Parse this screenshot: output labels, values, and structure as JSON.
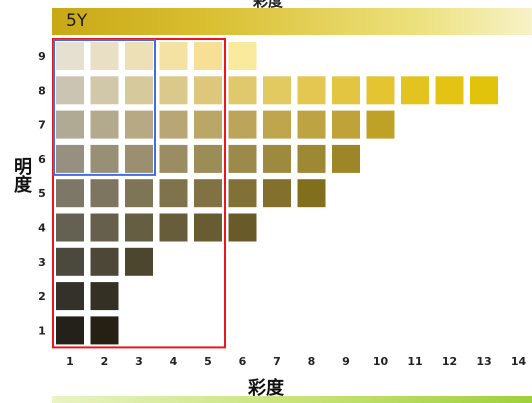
{
  "top_title": "彩度",
  "header": {
    "hue": "5Y"
  },
  "colors": {
    "highlight_red": "#e8161f",
    "highlight_blue": "#3f6fe0",
    "header_band_from": "#c9a816",
    "header_band_to": "#f7f2c8"
  },
  "chart_data": {
    "type": "heatmap",
    "title": "5Y",
    "xlabel": "彩度",
    "ylabel": "明度",
    "x_ticks": [
      "1",
      "2",
      "3",
      "4",
      "5",
      "6",
      "7",
      "8",
      "9",
      "10",
      "11",
      "12",
      "13",
      "14"
    ],
    "y_ticks": [
      "9",
      "8",
      "7",
      "6",
      "5",
      "4",
      "3",
      "2",
      "1"
    ],
    "rows": [
      {
        "value": 9,
        "colors": [
          "#e6e0d1",
          "#e8dfc4",
          "#eee0b6",
          "#f4e1a4",
          "#f7e096",
          "#faea9e"
        ]
      },
      {
        "value": 8,
        "colors": [
          "#ccc4b2",
          "#d1c7a9",
          "#d6c99b",
          "#dac98a",
          "#dcc77b",
          "#e0c96d",
          "#e2c960",
          "#e3c751",
          "#e4c542",
          "#e5c432",
          "#e3c320",
          "#e3c314",
          "#e2c30b"
        ]
      },
      {
        "value": 7,
        "colors": [
          "#b0a994",
          "#b3aa8d",
          "#b6a983",
          "#b8a774",
          "#baa767",
          "#bca55b",
          "#bea54e",
          "#bea343",
          "#bfa238",
          "#c0a128"
        ]
      },
      {
        "value": 6,
        "colors": [
          "#979080",
          "#988f77",
          "#9a8f6e",
          "#9b8d63",
          "#9c8c56",
          "#9c8a4b",
          "#9d8a3f",
          "#9d8833",
          "#9d8627"
        ]
      },
      {
        "value": 5,
        "colors": [
          "#7c7767",
          "#7d7560",
          "#7e7456",
          "#7f734c",
          "#807242",
          "#817137",
          "#82702c",
          "#826f1e"
        ]
      },
      {
        "value": 4,
        "colors": [
          "#646052",
          "#655f4b",
          "#665e43",
          "#675d3a",
          "#685c32",
          "#685b29"
        ]
      },
      {
        "value": 3,
        "colors": [
          "#4b483e",
          "#4c4737",
          "#4d462e"
        ]
      },
      {
        "value": 2,
        "colors": [
          "#333129",
          "#343024"
        ]
      },
      {
        "value": 1,
        "colors": [
          "#24211a",
          "#251f14"
        ]
      }
    ],
    "highlights": [
      {
        "name": "red",
        "chroma_range": [
          1,
          5
        ],
        "value_range": [
          1,
          9
        ]
      },
      {
        "name": "blue",
        "chroma_range": [
          1,
          3
        ],
        "value_range": [
          6,
          9
        ]
      }
    ]
  }
}
